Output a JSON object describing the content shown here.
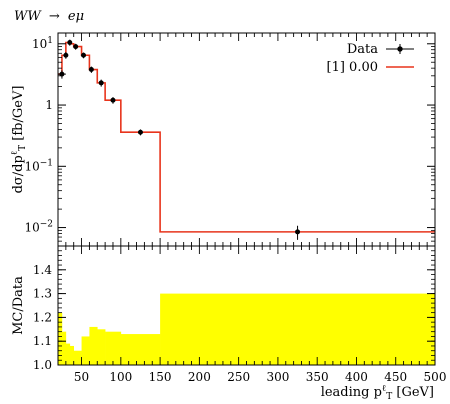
{
  "title_prefix": "WW",
  "title_arrow": "→",
  "title_suffix": "eμ",
  "chart_data": [
    {
      "panel": "main",
      "type": "line",
      "xlim": [
        20,
        500
      ],
      "ylim": [
        0.005,
        15
      ],
      "yscale": "log",
      "yticks": [
        0.01,
        0.1,
        1,
        10
      ],
      "yticklabels": [
        {
          "base": "10",
          "exp": "−2"
        },
        {
          "base": "10",
          "exp": "−1"
        },
        {
          "base": "1",
          "exp": ""
        },
        {
          "base": "10",
          "exp": "1"
        }
      ],
      "ylabel": {
        "main": "dσ/dp",
        "sup": "ℓ",
        "sub": "T",
        "tail": " [fb/GeV]"
      },
      "legend": {
        "placement": "top-right",
        "entries": [
          "Data",
          "[1] 0.00"
        ]
      },
      "colors": {
        "data": "#000000",
        "mc": "#e8341c"
      },
      "series": [
        {
          "name": "Data",
          "x": [
            25,
            30,
            35,
            42.5,
            52.5,
            62.5,
            75,
            90,
            125,
            325
          ],
          "y": [
            3.2,
            6.5,
            10.5,
            9.0,
            6.5,
            3.8,
            2.3,
            1.2,
            0.36,
            0.0085
          ],
          "yerr_low": [
            0.5,
            0.8,
            1.2,
            1.0,
            0.7,
            0.45,
            0.3,
            0.15,
            0.04,
            0.0022
          ],
          "yerr_high": [
            0.5,
            0.8,
            1.2,
            1.0,
            0.7,
            0.45,
            0.3,
            0.15,
            0.04,
            0.0022
          ],
          "xerr": [
            5,
            0,
            0,
            0,
            0,
            0,
            0,
            0,
            0,
            0
          ]
        },
        {
          "name": "[1] 0.00",
          "edges": [
            20,
            25,
            30,
            35,
            40,
            50,
            60,
            70,
            80,
            100,
            150,
            500
          ],
          "values": [
            3.2,
            6.5,
            10.5,
            10.0,
            9.0,
            6.5,
            3.8,
            2.3,
            1.2,
            0.36,
            0.0085
          ]
        }
      ]
    },
    {
      "panel": "ratio",
      "type": "area",
      "xlim": [
        20,
        500
      ],
      "ylim": [
        1.0,
        1.5
      ],
      "yticks": [
        1.0,
        1.1,
        1.2,
        1.3,
        1.4
      ],
      "yticklabels": [
        "1.0",
        "1.1",
        "1.2",
        "1.3",
        "1.4"
      ],
      "xticks": [
        50,
        100,
        150,
        200,
        250,
        300,
        350,
        400,
        450,
        500
      ],
      "xticklabels": [
        "50",
        "100",
        "150",
        "200",
        "250",
        "300",
        "350",
        "400",
        "450",
        "500"
      ],
      "ylabel": "MC/Data",
      "xlabel": {
        "main": "leading p",
        "sup": "ℓ",
        "sub": "T",
        "tail": " [GeV]"
      },
      "colors": {
        "band": "#ffff00"
      },
      "band": {
        "edges": [
          20,
          25,
          30,
          35,
          40,
          50,
          60,
          70,
          80,
          100,
          150,
          500
        ],
        "low": [
          0.78,
          0.86,
          0.91,
          0.92,
          0.94,
          0.88,
          0.86,
          0.84,
          0.86,
          0.87,
          0.7
        ],
        "high": [
          1.22,
          1.14,
          1.09,
          1.08,
          1.06,
          1.12,
          1.16,
          1.15,
          1.14,
          1.13,
          1.3
        ]
      }
    }
  ]
}
